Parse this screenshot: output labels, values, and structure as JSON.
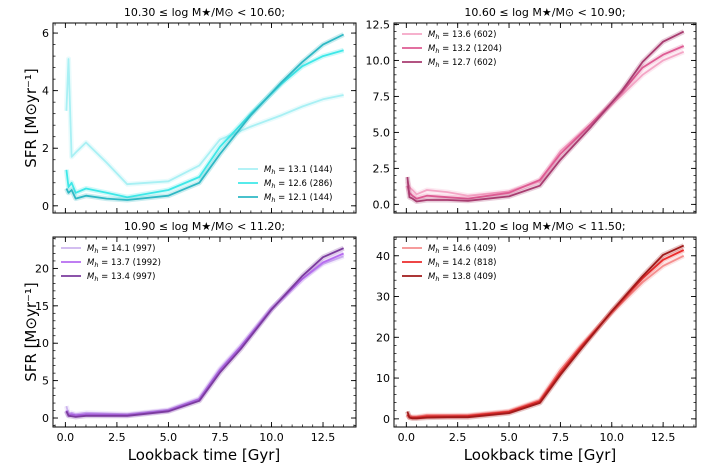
{
  "figure": {
    "xlabel": "Lookback time [Gyr]",
    "ylabel": "SFR [M⊙yr⁻¹]"
  },
  "chart_data": [
    {
      "type": "line",
      "title": "10.30 ≤ log M★/M⊙ < 10.60;",
      "xlim": [
        -0.6,
        14.1
      ],
      "ylim": [
        -0.25,
        6.35
      ],
      "xticks": [
        0.0,
        2.5,
        5.0,
        7.5,
        10.0,
        12.5
      ],
      "yticks": [
        0,
        2,
        4,
        6
      ],
      "ytick_labels": [
        "0",
        "2",
        "4",
        "6"
      ],
      "legend_position": "lower-right",
      "x": [
        0.05,
        0.15,
        0.3,
        0.5,
        1.0,
        2.0,
        3.0,
        5.0,
        6.5,
        7.5,
        9.0,
        10.5,
        11.5,
        12.5,
        13.5
      ],
      "series": [
        {
          "name": "M_h = 13.1 (144)",
          "mass": "13.1",
          "count": "(144)",
          "color": "#a8f0f4",
          "values": [
            3.3,
            5.1,
            1.7,
            1.85,
            2.2,
            1.5,
            0.75,
            0.85,
            1.4,
            2.3,
            2.75,
            3.15,
            3.45,
            3.7,
            3.85
          ]
        },
        {
          "name": "M_h = 12.6 (286)",
          "mass": "12.6",
          "count": "(286)",
          "color": "#3ee8e8",
          "values": [
            1.25,
            0.65,
            0.8,
            0.45,
            0.6,
            0.45,
            0.3,
            0.55,
            1.0,
            2.05,
            3.2,
            4.25,
            4.85,
            5.2,
            5.4
          ]
        },
        {
          "name": "M_h = 12.1 (144)",
          "mass": "12.1",
          "count": "(144)",
          "color": "#2eb8c4",
          "values": [
            0.6,
            0.45,
            0.55,
            0.25,
            0.35,
            0.25,
            0.2,
            0.35,
            0.8,
            1.8,
            3.15,
            4.3,
            5.0,
            5.6,
            5.95
          ]
        }
      ]
    },
    {
      "type": "line",
      "title": "10.60 ≤ log M★/M⊙ < 10.90;",
      "xlim": [
        -0.6,
        14.1
      ],
      "ylim": [
        -0.6,
        12.6
      ],
      "xticks": [
        0.0,
        2.5,
        5.0,
        7.5,
        10.0,
        12.5
      ],
      "yticks": [
        0.0,
        2.5,
        5.0,
        7.5,
        10.0,
        12.5
      ],
      "ytick_labels": [
        "0.0",
        "2.5",
        "5.0",
        "7.5",
        "10.0",
        "12.5"
      ],
      "legend_position": "top-left",
      "x": [
        0.05,
        0.15,
        0.3,
        0.5,
        1.0,
        2.0,
        3.0,
        5.0,
        6.5,
        7.5,
        9.0,
        10.5,
        11.5,
        12.5,
        13.5
      ],
      "series": [
        {
          "name": "M_h = 13.6 (602)",
          "mass": "13.6",
          "count": "(602)",
          "color": "#f4a6c6",
          "values": [
            1.6,
            1.2,
            1.0,
            0.7,
            1.0,
            0.85,
            0.6,
            0.9,
            1.6,
            3.7,
            5.6,
            7.6,
            9.0,
            10.0,
            10.6
          ]
        },
        {
          "name": "M_h = 13.2 (1204)",
          "mass": "13.2",
          "count": "(1204)",
          "color": "#de5b93",
          "values": [
            1.3,
            0.8,
            0.6,
            0.4,
            0.6,
            0.5,
            0.4,
            0.8,
            1.7,
            3.5,
            5.6,
            7.8,
            9.5,
            10.4,
            11.0
          ]
        },
        {
          "name": "M_h = 12.7 (602)",
          "mass": "12.7",
          "count": "(602)",
          "color": "#a83c70",
          "values": [
            1.9,
            0.5,
            0.4,
            0.2,
            0.3,
            0.3,
            0.25,
            0.55,
            1.3,
            3.1,
            5.4,
            7.9,
            9.9,
            11.3,
            12.0
          ]
        }
      ]
    },
    {
      "type": "line",
      "title": "10.90 ≤ log M★/M⊙ < 11.20;",
      "xlim": [
        -0.6,
        14.1
      ],
      "ylim": [
        -1.2,
        24.2
      ],
      "xticks": [
        0.0,
        2.5,
        5.0,
        7.5,
        10.0,
        12.5
      ],
      "yticks": [
        0,
        5,
        10,
        15,
        20
      ],
      "ytick_labels": [
        "0",
        "5",
        "10",
        "15",
        "20"
      ],
      "legend_position": "top-left",
      "x": [
        0.05,
        0.15,
        0.3,
        0.5,
        1.0,
        2.0,
        3.0,
        5.0,
        6.5,
        7.5,
        8.5,
        10.0,
        11.5,
        12.5,
        13.5
      ],
      "series": [
        {
          "name": "M_h = 14.1 (997)",
          "mass": "14.1",
          "count": "(997)",
          "color": "#cdb4ee",
          "values": [
            1.6,
            0.5,
            0.7,
            0.5,
            0.7,
            0.6,
            0.5,
            1.1,
            2.6,
            6.6,
            9.6,
            14.6,
            18.6,
            20.6,
            21.6
          ]
        },
        {
          "name": "M_h = 13.7 (1992)",
          "mass": "13.7",
          "count": "(1992)",
          "color": "#b66cf0",
          "values": [
            1.0,
            0.4,
            0.5,
            0.35,
            0.5,
            0.45,
            0.4,
            1.0,
            2.5,
            6.4,
            9.5,
            14.6,
            18.6,
            20.8,
            22.0
          ]
        },
        {
          "name": "M_h = 13.4 (997)",
          "mass": "13.4",
          "count": "(997)",
          "color": "#7b3b9e",
          "values": [
            0.9,
            0.3,
            0.25,
            0.15,
            0.3,
            0.3,
            0.3,
            0.9,
            2.3,
            6.1,
            9.2,
            14.5,
            19.0,
            21.5,
            22.7
          ]
        }
      ]
    },
    {
      "type": "line",
      "title": "11.20 ≤ log M★/M⊙ < 11.50;",
      "xlim": [
        -0.6,
        14.1
      ],
      "ylim": [
        -2.0,
        44.6
      ],
      "xticks": [
        0.0,
        2.5,
        5.0,
        7.5,
        10.0,
        12.5
      ],
      "yticks": [
        0,
        10,
        20,
        30,
        40
      ],
      "ytick_labels": [
        "0",
        "10",
        "20",
        "30",
        "40"
      ],
      "legend_position": "top-left",
      "x": [
        0.05,
        0.15,
        0.3,
        0.5,
        1.0,
        2.0,
        3.0,
        5.0,
        6.5,
        7.5,
        8.5,
        10.0,
        11.5,
        12.5,
        13.5
      ],
      "series": [
        {
          "name": "M_h = 14.6 (409)",
          "mass": "14.6",
          "count": "(409)",
          "color": "#f58e8e",
          "values": [
            1.2,
            0.7,
            0.5,
            0.5,
            0.9,
            0.9,
            0.9,
            1.9,
            4.6,
            12.0,
            18.0,
            26.0,
            33.5,
            37.5,
            40.0
          ]
        },
        {
          "name": "M_h = 14.2 (818)",
          "mass": "14.2",
          "count": "(818)",
          "color": "#ec2c2c",
          "values": [
            1.0,
            0.4,
            0.3,
            0.3,
            0.6,
            0.6,
            0.7,
            1.7,
            4.3,
            11.3,
            17.6,
            26.3,
            34.5,
            39.0,
            41.4
          ]
        },
        {
          "name": "M_h = 13.8 (409)",
          "mass": "13.8",
          "count": "(409)",
          "color": "#a01a1a",
          "values": [
            1.8,
            0.3,
            0.1,
            0.1,
            0.3,
            0.4,
            0.4,
            1.4,
            3.9,
            10.8,
            17.1,
            26.4,
            35.0,
            40.2,
            42.5
          ]
        }
      ]
    }
  ]
}
